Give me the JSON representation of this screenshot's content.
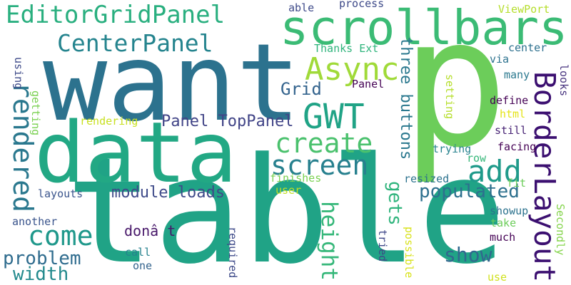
{
  "words": [
    {
      "text": "table",
      "color": "#20a386"
    },
    {
      "text": "p",
      "color": "#6ccd5a"
    },
    {
      "text": "want",
      "color": "#2c728e"
    },
    {
      "text": "data",
      "color": "#22a884"
    },
    {
      "text": "scrollbars",
      "color": "#3bbb75"
    },
    {
      "text": "EditorGridPanel",
      "color": "#29af7f"
    },
    {
      "text": "CenterPanel",
      "color": "#25848e"
    },
    {
      "text": "Async",
      "color": "#a0da39"
    },
    {
      "text": "GWT",
      "color": "#20a386"
    },
    {
      "text": "create",
      "color": "#4ac16d"
    },
    {
      "text": "screen",
      "color": "#27808e"
    },
    {
      "text": "add",
      "color": "#1f9a8a"
    },
    {
      "text": "BorderLayout",
      "color": "#3b0f70"
    },
    {
      "text": "rendered",
      "color": "#2a788e"
    },
    {
      "text": "come",
      "color": "#1f988b"
    },
    {
      "text": "populated",
      "color": "#2d708e"
    },
    {
      "text": "module loads",
      "color": "#3e4a89"
    },
    {
      "text": "Panel TopPanel",
      "color": "#414487"
    },
    {
      "text": "Grid",
      "color": "#33638d"
    },
    {
      "text": "gets",
      "color": "#2fb47c"
    },
    {
      "text": "three buttons",
      "color": "#2a788e"
    },
    {
      "text": "height",
      "color": "#35b779"
    },
    {
      "text": "show",
      "color": "#31688e"
    },
    {
      "text": "problem",
      "color": "#2f6c8e"
    },
    {
      "text": "width",
      "color": "#238a8d"
    },
    {
      "text": "donâ t",
      "color": "#48186a"
    },
    {
      "text": "layouts",
      "color": "#3a548c"
    },
    {
      "text": "finishes",
      "color": "#7ad151"
    },
    {
      "text": "user",
      "color": "#c2df23"
    },
    {
      "text": "rendering",
      "color": "#c8e020"
    },
    {
      "text": "getting",
      "color": "#7ad151"
    },
    {
      "text": "using",
      "color": "#3e4a89"
    },
    {
      "text": "another",
      "color": "#3a548c"
    },
    {
      "text": "call",
      "color": "#26828e"
    },
    {
      "text": "one",
      "color": "#33638d"
    },
    {
      "text": "required",
      "color": "#3e4a89"
    },
    {
      "text": "tried",
      "color": "#3f4788"
    },
    {
      "text": "possible",
      "color": "#d8e219"
    },
    {
      "text": "much",
      "color": "#440154"
    },
    {
      "text": "take",
      "color": "#6ccd5a"
    },
    {
      "text": "showup",
      "color": "#2c728e"
    },
    {
      "text": "use",
      "color": "#d0e11c"
    },
    {
      "text": "Secondly",
      "color": "#84d44b"
    },
    {
      "text": "fit",
      "color": "#6ccd5a"
    },
    {
      "text": "resized",
      "color": "#2c728e"
    },
    {
      "text": "row",
      "color": "#35b779"
    },
    {
      "text": "facing",
      "color": "#440154"
    },
    {
      "text": "still",
      "color": "#482475"
    },
    {
      "text": "trying",
      "color": "#26828e"
    },
    {
      "text": "define",
      "color": "#440154"
    },
    {
      "text": "html",
      "color": "#e5e419"
    },
    {
      "text": "setting",
      "color": "#b5de2b"
    },
    {
      "text": "many",
      "color": "#2a788e"
    },
    {
      "text": "looks",
      "color": "#46327e"
    },
    {
      "text": "via",
      "color": "#2c728e"
    },
    {
      "text": "center",
      "color": "#2d708e"
    },
    {
      "text": "ViewPort",
      "color": "#b5de2b"
    },
    {
      "text": "Thanks Ext",
      "color": "#2fb47c"
    },
    {
      "text": "able",
      "color": "#3e4a89"
    },
    {
      "text": "process",
      "color": "#3e4a89"
    },
    {
      "text": "Panel",
      "color": "#440154"
    }
  ]
}
